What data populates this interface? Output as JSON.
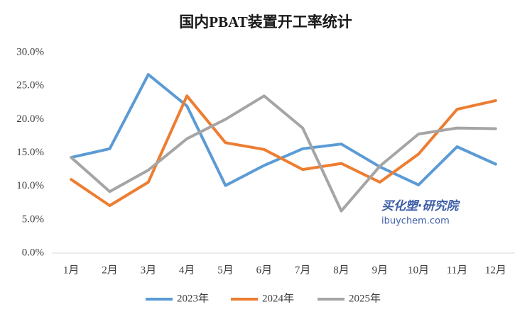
{
  "chart_data": {
    "type": "line",
    "title": "国内PBAT装置开工率统计",
    "watermark": [
      "买化塑·研究院",
      "ibuychem.com"
    ],
    "categories": [
      "1月",
      "2月",
      "3月",
      "4月",
      "5月",
      "6月",
      "7月",
      "8月",
      "9月",
      "10月",
      "11月",
      "12月"
    ],
    "series": [
      {
        "name": "2023年",
        "color": "#5b9bd5",
        "values": [
          14.3,
          15.6,
          26.7,
          22.0,
          10.1,
          13.1,
          15.6,
          16.3,
          12.9,
          10.2,
          15.9,
          13.3
        ]
      },
      {
        "name": "2024年",
        "color": "#ed7d31",
        "values": [
          11.0,
          7.1,
          10.6,
          23.5,
          16.5,
          15.5,
          12.5,
          13.4,
          10.6,
          14.8,
          21.5,
          22.8
        ]
      },
      {
        "name": "2025年",
        "color": "#a5a5a5",
        "values": [
          14.3,
          9.2,
          12.4,
          17.1,
          20.0,
          23.5,
          18.7,
          6.3,
          13.0,
          17.8,
          18.7,
          18.6
        ]
      }
    ],
    "ylim": [
      0,
      30
    ],
    "yticks": [
      {
        "value": 0,
        "label": "0.0%"
      },
      {
        "value": 5,
        "label": "5.0%"
      },
      {
        "value": 10,
        "label": "10.0%"
      },
      {
        "value": 15,
        "label": "15.0%"
      },
      {
        "value": 20,
        "label": "20.0%"
      },
      {
        "value": 25,
        "label": "25.0%"
      },
      {
        "value": 30,
        "label": "30.0%"
      }
    ],
    "grid": false,
    "legend": "bottom"
  }
}
